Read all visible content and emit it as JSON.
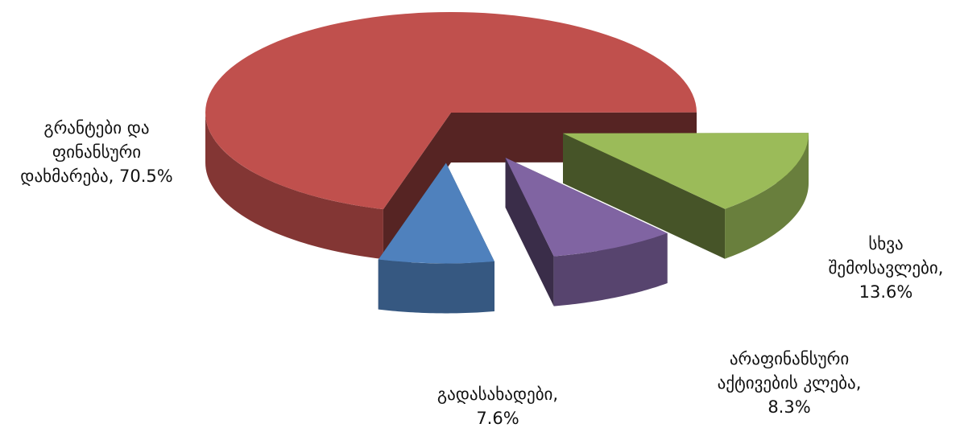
{
  "chart_data": {
    "type": "pie",
    "categories": [
      "გრანტები და ფინანსური დახმარება",
      "სხვა შემოსავლები",
      "არაფინანსური აქტივების კლება",
      "გადასახადები"
    ],
    "values": [
      70.5,
      13.6,
      8.3,
      7.6
    ],
    "value_labels": [
      "გრანტები და ფინანსური დახმარება, 70.5%",
      "სხვა შემოსავლები, 13.6%",
      "არაფინანსური აქტივების კლება, 8.3%",
      "გადასახადები, 7.6%"
    ],
    "colors": [
      "#c0504d",
      "#9bbb59",
      "#8064a2",
      "#4f81bd"
    ]
  }
}
